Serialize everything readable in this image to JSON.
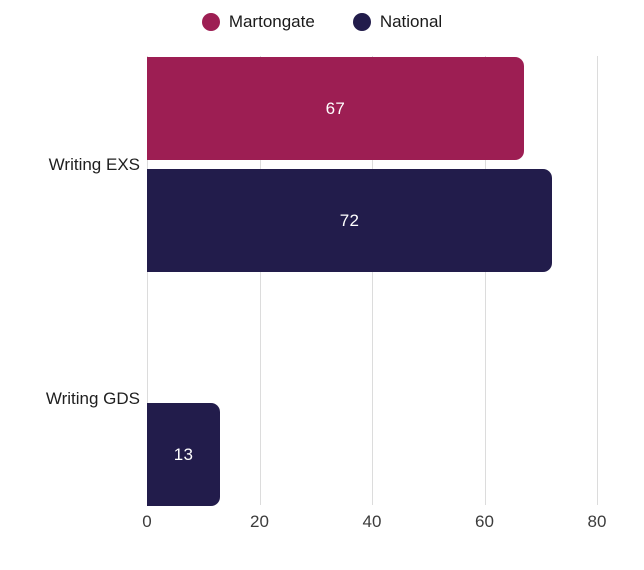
{
  "chart_data": {
    "type": "bar",
    "orientation": "horizontal",
    "title": "",
    "xlabel": "",
    "ylabel": "",
    "categories": [
      "Writing EXS",
      "Writing GDS"
    ],
    "series": [
      {
        "name": "Martongate",
        "color": "#9d1e53",
        "values": [
          67,
          null
        ]
      },
      {
        "name": "National",
        "color": "#221c4b",
        "values": [
          72,
          13
        ]
      }
    ],
    "xlim": [
      0,
      80
    ],
    "xticks": [
      0,
      20,
      40,
      60,
      80
    ],
    "grid": true,
    "gridline_color": "#dcdcdc",
    "background_color": "#ffffff",
    "value_label_color": "#ffffff",
    "value_labels_shown": true,
    "legend_position": "top"
  }
}
